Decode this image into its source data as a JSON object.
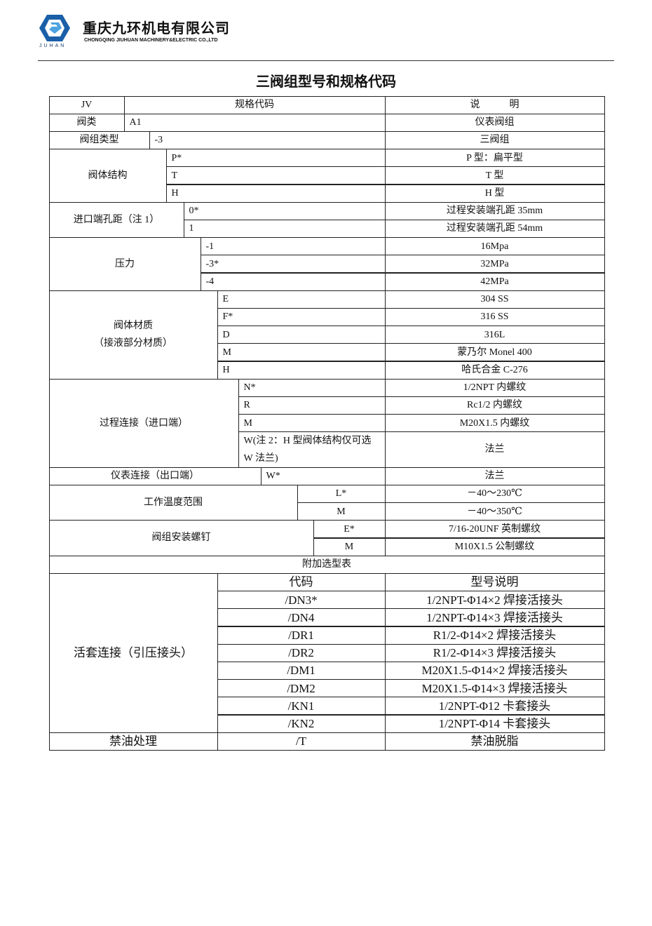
{
  "header": {
    "company_zh": "重庆九环机电有限公司",
    "company_en": "CHONGQING JIUHUAN MACHINERY&ELECTRIC CO.,LTD",
    "logo_mark": "JUHAN",
    "logo_color": "#1a5fa8"
  },
  "title": "三阀组型号和规格代码",
  "table": {
    "head": {
      "first": "JV",
      "spec": "规格代码",
      "desc": "说　　　明"
    },
    "sections": [
      {
        "label": "阀类",
        "items": [
          {
            "code": "A1",
            "desc": "仪表阀组"
          }
        ]
      },
      {
        "label": "阀组类型",
        "items": [
          {
            "code": "-3",
            "desc": "三阀组"
          }
        ]
      },
      {
        "label": "阀体结构",
        "items": [
          {
            "code": "P*",
            "desc": "P 型：扁平型"
          },
          {
            "code": "T",
            "desc": "T 型"
          },
          {
            "code": "H",
            "desc": "H 型"
          }
        ]
      },
      {
        "label": "进口端孔距（注 1）",
        "items": [
          {
            "code": "0*",
            "desc": "过程安装端孔距 35mm"
          },
          {
            "code": "1",
            "desc": "过程安装端孔距 54mm"
          }
        ]
      },
      {
        "label": "压力",
        "items": [
          {
            "code": "-1",
            "desc": "16Mpa"
          },
          {
            "code": "-3*",
            "desc": "32MPa"
          },
          {
            "code": "-4",
            "desc": "42MPa"
          }
        ]
      },
      {
        "label": "阀体材质\n（接液部分材质）",
        "items": [
          {
            "code": "E",
            "desc": "304  SS"
          },
          {
            "code": "F*",
            "desc": "316  SS"
          },
          {
            "code": "D",
            "desc": "316L"
          },
          {
            "code": "M",
            "desc": "蒙乃尔 Monel 400"
          },
          {
            "code": "H",
            "desc": "哈氏合金 C-276"
          }
        ]
      },
      {
        "label": "过程连接（进口端）",
        "items": [
          {
            "code": "N*",
            "desc": "1/2NPT 内螺纹"
          },
          {
            "code": "R",
            "desc": "Rc1/2 内螺纹"
          },
          {
            "code": "M",
            "desc": "M20X1.5 内螺纹"
          },
          {
            "code": "W(注 2：H 型阀体结构仅可选 W 法兰)",
            "desc": "法兰"
          }
        ]
      },
      {
        "label": "仪表连接（出口端）",
        "items": [
          {
            "code": "W*",
            "desc": "法兰"
          }
        ]
      },
      {
        "label": "工作温度范围",
        "items": [
          {
            "code": "L*",
            "desc": "－40～230℃"
          },
          {
            "code": "M",
            "desc": "－40～350℃"
          }
        ]
      },
      {
        "label": "阀组安装螺钉",
        "items": [
          {
            "code": "E*",
            "desc": "7/16-20UNF 英制螺纹"
          },
          {
            "code": "M",
            "desc": "M10X1.5 公制螺纹"
          }
        ]
      }
    ]
  },
  "addon": {
    "title": "附加选型表",
    "headers": [
      "代码",
      "型号说明"
    ],
    "group_label": "活套连接（引压接头）",
    "rows": [
      {
        "code": "/DN3*",
        "desc": "1/2NPT-Φ14×2 焊接活接头"
      },
      {
        "code": "/DN4",
        "desc": "1/2NPT-Φ14×3 焊接活接头"
      },
      {
        "code": "/DR1",
        "desc": "R1/2-Φ14×2 焊接活接头"
      },
      {
        "code": "/DR2",
        "desc": "R1/2-Φ14×3 焊接活接头"
      },
      {
        "code": "/DM1",
        "desc": "M20X1.5-Φ14×2 焊接活接头"
      },
      {
        "code": "/DM2",
        "desc": "M20X1.5-Φ14×3 焊接活接头"
      },
      {
        "code": "/KN1",
        "desc": "1/2NPT-Φ12 卡套接头"
      },
      {
        "code": "/KN2",
        "desc": "1/2NPT-Φ14 卡套接头"
      }
    ],
    "oil": {
      "label": "禁油处理",
      "code": "/T",
      "desc": "禁油脱脂"
    }
  }
}
